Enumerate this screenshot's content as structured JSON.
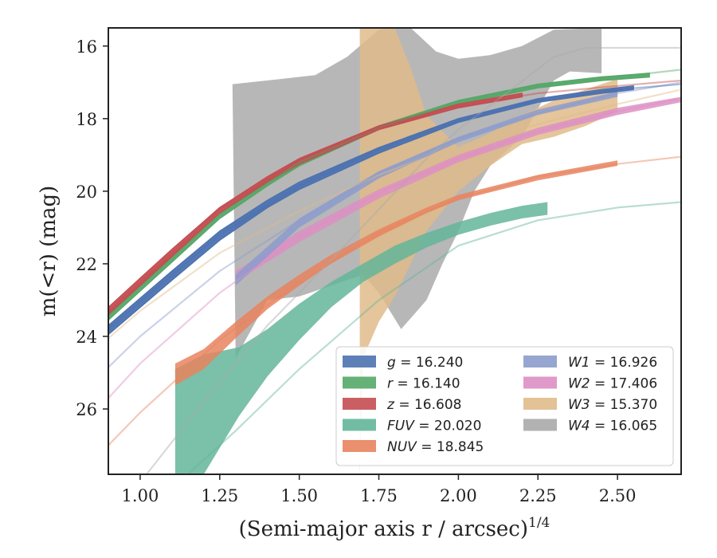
{
  "chart_data": {
    "type": "area",
    "xlabel": "(Semi-major axis r / arcsec)",
    "xlabel_exponent": "1/4",
    "ylabel": "m(<r) (mag)",
    "xlim": [
      0.9,
      2.7
    ],
    "ylim": [
      27.8,
      15.5
    ],
    "y_inverted": true,
    "grid": false,
    "legend_position": "lower-right",
    "x_ticks": [
      1.0,
      1.25,
      1.5,
      1.75,
      2.0,
      2.25,
      2.5
    ],
    "x_tick_labels": [
      "1.00",
      "1.25",
      "1.50",
      "1.75",
      "2.00",
      "2.25",
      "2.50"
    ],
    "y_ticks": [
      16,
      18,
      20,
      22,
      24,
      26
    ],
    "y_tick_labels": [
      "16",
      "18",
      "20",
      "22",
      "24",
      "26"
    ],
    "series": [
      {
        "name": "g",
        "label_value": "16.240",
        "color": "#4c72b0",
        "band": {
          "x": [
            0.9,
            1.0,
            1.1,
            1.25,
            1.4,
            1.5,
            1.75,
            2.0,
            2.25,
            2.45,
            2.55
          ],
          "y_low": [
            23.95,
            23.2,
            22.45,
            21.35,
            20.45,
            19.95,
            18.95,
            18.1,
            17.55,
            17.3,
            17.2
          ],
          "y_high": [
            23.7,
            22.95,
            22.2,
            21.1,
            20.25,
            19.75,
            18.8,
            18.0,
            17.45,
            17.2,
            17.1
          ]
        },
        "curve": {
          "x": [
            0.9,
            1.0,
            1.25,
            1.5,
            1.75,
            2.0,
            2.25,
            2.5,
            2.7
          ],
          "y": [
            23.8,
            23.05,
            21.2,
            19.85,
            18.85,
            18.05,
            17.5,
            17.2,
            17.05
          ]
        }
      },
      {
        "name": "r",
        "label_value": "16.140",
        "color": "#55a868",
        "band": {
          "x": [
            0.9,
            1.0,
            1.1,
            1.25,
            1.4,
            1.5,
            1.75,
            2.0,
            2.25,
            2.45,
            2.6
          ],
          "y_low": [
            23.55,
            22.75,
            21.95,
            20.75,
            19.85,
            19.3,
            18.3,
            17.6,
            17.15,
            16.95,
            16.85
          ],
          "y_high": [
            23.35,
            22.55,
            21.75,
            20.6,
            19.7,
            19.15,
            18.2,
            17.5,
            17.05,
            16.85,
            16.75
          ]
        },
        "curve": {
          "x": [
            0.9,
            1.0,
            1.25,
            1.5,
            1.75,
            2.0,
            2.25,
            2.5,
            2.7
          ],
          "y": [
            23.45,
            22.65,
            20.65,
            19.2,
            18.25,
            17.55,
            17.1,
            16.85,
            16.65
          ]
        }
      },
      {
        "name": "z",
        "label_value": "16.608",
        "color": "#c44e52",
        "band": {
          "x": [
            0.9,
            1.0,
            1.1,
            1.25,
            1.4,
            1.5,
            1.75,
            2.0,
            2.2
          ],
          "y_low": [
            23.4,
            22.6,
            21.8,
            20.6,
            19.75,
            19.25,
            18.3,
            17.7,
            17.4
          ],
          "y_high": [
            23.2,
            22.4,
            21.6,
            20.45,
            19.6,
            19.1,
            18.2,
            17.6,
            17.3
          ]
        },
        "curve": {
          "x": [
            0.9,
            1.0,
            1.25,
            1.5,
            1.75,
            2.0,
            2.25,
            2.5,
            2.7
          ],
          "y": [
            23.3,
            22.5,
            20.5,
            19.15,
            18.25,
            17.65,
            17.3,
            17.1,
            16.95
          ]
        }
      },
      {
        "name": "FUV",
        "label_value": "20.020",
        "color": "#64b59a",
        "band": {
          "x": [
            1.11,
            1.2,
            1.31,
            1.4,
            1.5,
            1.6,
            1.7,
            1.8,
            1.9,
            2.0,
            2.1,
            2.2,
            2.28
          ],
          "y_low": [
            27.8,
            27.8,
            26.2,
            25.1,
            24.1,
            23.2,
            22.5,
            22.0,
            21.55,
            21.2,
            20.95,
            20.75,
            20.65
          ],
          "y_high": [
            24.9,
            24.5,
            24.3,
            23.8,
            23.1,
            22.5,
            22.0,
            21.5,
            21.15,
            20.85,
            20.6,
            20.4,
            20.3
          ]
        },
        "curve": {
          "x": [
            1.15,
            1.3,
            1.5,
            1.75,
            2.0,
            2.25,
            2.5,
            2.7
          ],
          "y": [
            27.8,
            26.6,
            24.9,
            23.0,
            21.5,
            20.8,
            20.45,
            20.3
          ]
        }
      },
      {
        "name": "NUV",
        "label_value": "18.845",
        "color": "#e8845f",
        "band": {
          "x": [
            1.11,
            1.2,
            1.3,
            1.4,
            1.5,
            1.6,
            1.75,
            1.9,
            2.0,
            2.25,
            2.5
          ],
          "y_low": [
            25.35,
            24.9,
            24.05,
            23.25,
            22.6,
            22.0,
            21.25,
            20.6,
            20.25,
            19.7,
            19.3
          ],
          "y_high": [
            24.75,
            24.35,
            23.6,
            22.9,
            22.3,
            21.75,
            21.05,
            20.45,
            20.1,
            19.55,
            19.15
          ]
        },
        "curve": {
          "x": [
            0.9,
            1.0,
            1.25,
            1.5,
            1.75,
            2.0,
            2.25,
            2.5,
            2.7
          ],
          "y": [
            27.0,
            26.1,
            24.1,
            22.5,
            21.15,
            20.2,
            19.6,
            19.25,
            19.05
          ]
        }
      },
      {
        "name": "W1",
        "label_value": "16.926",
        "color": "#8c9ccc",
        "band": {
          "x": [
            1.3,
            1.5,
            1.75,
            2.0,
            2.25,
            2.5
          ],
          "y_low": [
            22.6,
            21.0,
            19.65,
            18.65,
            17.9,
            17.4
          ],
          "y_high": [
            22.3,
            20.75,
            19.45,
            18.5,
            17.75,
            17.25
          ]
        },
        "curve": {
          "x": [
            0.9,
            1.0,
            1.25,
            1.5,
            1.75,
            2.0,
            2.25,
            2.5,
            2.7
          ],
          "y": [
            24.85,
            24.0,
            22.2,
            20.8,
            19.5,
            18.55,
            17.85,
            17.3,
            17.0
          ]
        }
      },
      {
        "name": "W2",
        "label_value": "17.406",
        "color": "#dd8fc4",
        "band": {
          "x": [
            1.3,
            1.5,
            1.75,
            2.0,
            2.25,
            2.5,
            2.7
          ],
          "y_low": [
            22.5,
            21.4,
            20.2,
            19.2,
            18.45,
            17.9,
            17.55
          ],
          "y_high": [
            22.2,
            21.1,
            19.95,
            19.0,
            18.25,
            17.7,
            17.4
          ]
        },
        "curve": {
          "x": [
            0.9,
            1.0,
            1.25,
            1.5,
            1.75,
            2.0,
            2.25,
            2.5,
            2.7
          ],
          "y": [
            25.7,
            24.75,
            22.8,
            21.25,
            20.05,
            19.1,
            18.35,
            17.8,
            17.45
          ]
        }
      },
      {
        "name": "W3",
        "label_value": "15.370",
        "color": "#e0bb8a",
        "band": {
          "x": [
            1.69,
            1.7,
            1.75,
            1.8,
            1.85,
            1.9,
            2.0,
            2.1,
            2.2,
            2.3,
            2.4,
            2.5
          ],
          "y_low": [
            27.8,
            24.6,
            23.6,
            22.9,
            22.0,
            21.1,
            20.0,
            19.3,
            18.7,
            18.5,
            18.2,
            17.8
          ],
          "y_high": [
            15.5,
            15.5,
            15.5,
            15.5,
            16.6,
            17.9,
            18.8,
            18.4,
            17.9,
            17.5,
            17.2,
            16.9
          ]
        },
        "curve": {
          "x": [
            0.9,
            1.0,
            1.25,
            1.5,
            1.75,
            2.0,
            2.25,
            2.5,
            2.7
          ],
          "y": [
            24.05,
            23.3,
            21.7,
            20.55,
            19.55,
            18.75,
            18.15,
            17.6,
            17.2
          ]
        }
      },
      {
        "name": "W4",
        "label_value": "16.065",
        "color": "#aaaaaa",
        "band": {
          "x": [
            1.29,
            1.29,
            1.4,
            1.55,
            1.7,
            1.82,
            1.87,
            1.93,
            2.05,
            2.15,
            2.3,
            2.45,
            2.45,
            2.35,
            2.25,
            2.2,
            2.1,
            2.0,
            1.92,
            1.82,
            1.8,
            1.75,
            1.7,
            1.55,
            1.4,
            1.29
          ],
          "y_low": [
            0,
            0,
            0,
            0,
            0,
            0,
            0,
            0,
            0,
            0,
            0,
            0,
            0,
            0,
            0,
            0,
            0,
            0,
            0,
            0,
            0,
            0,
            0,
            0,
            0,
            0
          ],
          "y_high": [
            0,
            0,
            0,
            0,
            0,
            0,
            0,
            0,
            0,
            0,
            0,
            0,
            0,
            0,
            0,
            0,
            0,
            0,
            0,
            0,
            0,
            0,
            0,
            0,
            0,
            0
          ]
        },
        "polygon": {
          "x": [
            1.29,
            1.45,
            1.55,
            1.65,
            1.75,
            1.8,
            1.85,
            1.93,
            2.0,
            2.1,
            2.2,
            2.3,
            2.45,
            2.45,
            2.35,
            2.3,
            2.2,
            2.1,
            2.05,
            2.0,
            1.95,
            1.9,
            1.85,
            1.82,
            1.75,
            1.7,
            1.6,
            1.5,
            1.4,
            1.3,
            1.29
          ],
          "y": [
            17.05,
            16.9,
            16.8,
            16.3,
            15.55,
            15.5,
            15.5,
            16.15,
            16.35,
            16.25,
            16.0,
            15.55,
            15.5,
            16.75,
            16.7,
            16.95,
            18.5,
            19.3,
            20.0,
            21.1,
            22.0,
            23.0,
            23.5,
            23.8,
            22.8,
            22.3,
            22.6,
            22.9,
            23.0,
            24.6,
            17.05
          ]
        },
        "curve": {
          "x": [
            1.02,
            1.2,
            1.4,
            1.6,
            1.75,
            1.9,
            2.0,
            2.15,
            2.3,
            2.4,
            2.5,
            2.7
          ],
          "y": [
            27.8,
            25.8,
            23.7,
            21.9,
            20.5,
            19.1,
            18.3,
            17.3,
            16.3,
            16.05,
            16.05,
            16.05
          ]
        }
      }
    ]
  }
}
